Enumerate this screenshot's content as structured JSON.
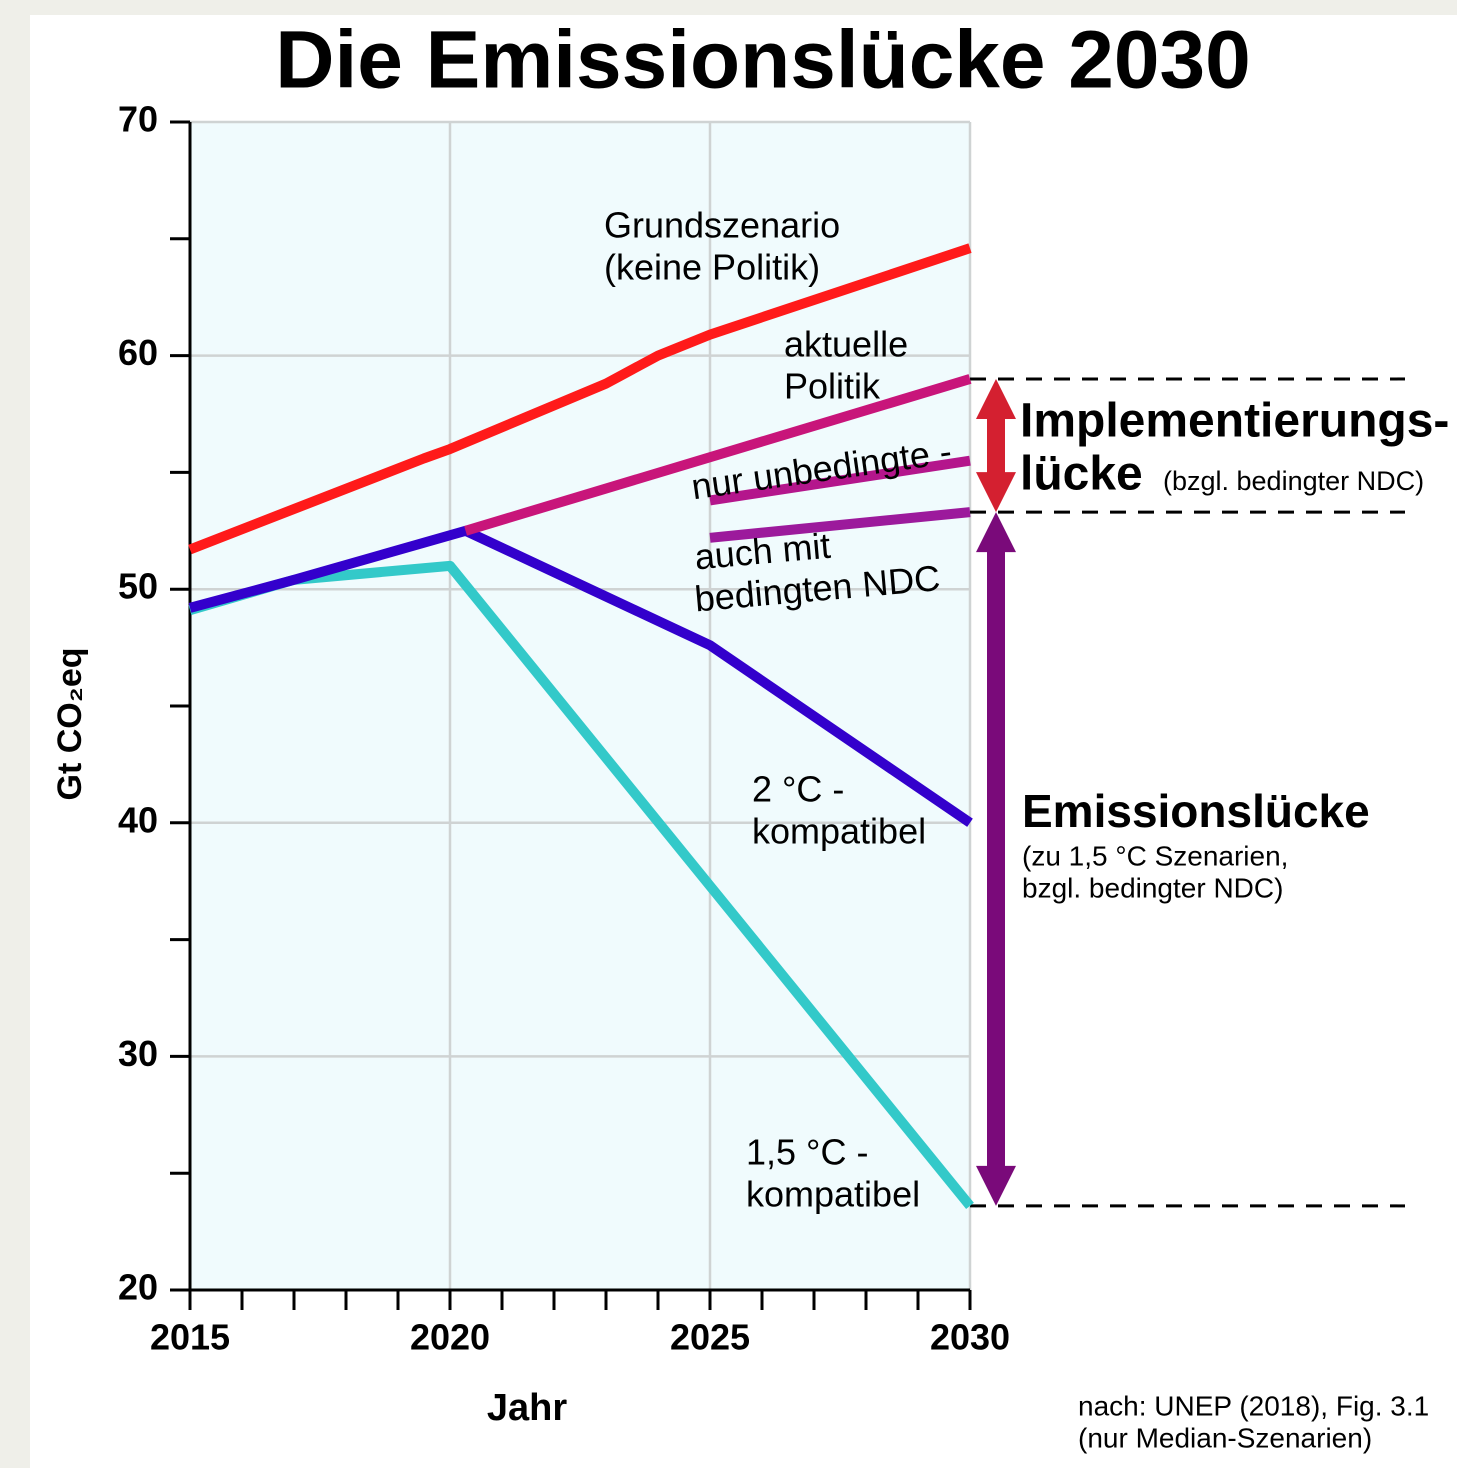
{
  "chart_data": {
    "type": "line",
    "title": "Die Emissionslücke 2030",
    "xlabel": "Jahr",
    "ylabel": "Gt CO₂eq",
    "xlim": [
      2015,
      2030
    ],
    "ylim": [
      20,
      70
    ],
    "xticks": [
      2015,
      2020,
      2025,
      2030
    ],
    "yticks": [
      20,
      30,
      40,
      50,
      60,
      70
    ],
    "xminor": [
      2016,
      2017,
      2018,
      2019,
      2021,
      2022,
      2023,
      2024,
      2026,
      2027,
      2028,
      2029
    ],
    "yminor": [
      25,
      35,
      45,
      55,
      65
    ],
    "grid": true,
    "series": [
      {
        "label": [
          "Grundszenario",
          "(keine Politik)"
        ],
        "color": "#ff1a1a",
        "x": [
          2015,
          2019.5,
          2020,
          2023,
          2024,
          2025,
          2030
        ],
        "values": [
          51.7,
          55.6,
          56,
          58.8,
          60,
          60.9,
          64.6
        ]
      },
      {
        "label": [
          "aktuelle",
          "Politik"
        ],
        "color": "#c8157a",
        "x": [
          2020.3,
          2030
        ],
        "values": [
          52.5,
          59
        ]
      },
      {
        "label": [
          "nur unbedingte -"
        ],
        "color": "#b4168c",
        "x": [
          2025,
          2030
        ],
        "values": [
          53.8,
          55.5
        ]
      },
      {
        "label": [
          "auch mit",
          "bedingten NDC"
        ],
        "color": "#9c1a9c",
        "x": [
          2025,
          2030
        ],
        "values": [
          52.2,
          53.3
        ]
      },
      {
        "label": [
          "2 °C -",
          "kompatibel"
        ],
        "color": "#3300cc",
        "x": [
          2015,
          2017,
          2020.3,
          2025,
          2030
        ],
        "values": [
          49.2,
          50.4,
          52.5,
          47.6,
          40
        ]
      },
      {
        "label": [
          "1,5 °C -",
          "kompatibel"
        ],
        "color": "#33c9c9",
        "x": [
          2015,
          2017,
          2020,
          2025,
          2030
        ],
        "values": [
          49.1,
          50.4,
          51,
          37.3,
          23.6
        ]
      }
    ],
    "gaps": [
      {
        "color": "#d42030",
        "label": [
          "Implementierungs-",
          "lücke"
        ],
        "note": [
          "(bzgl. bedingter NDC)"
        ]
      },
      {
        "color": "#7a0a7a",
        "label": [
          "Emissionslücke"
        ],
        "note": [
          "(zu 1,5 °C Szenarien,",
          "bzgl. bedingter NDC)"
        ]
      }
    ],
    "source": [
      "nach: UNEP (2018), Fig. 3.1",
      "(nur Median-Szenarien)"
    ]
  }
}
